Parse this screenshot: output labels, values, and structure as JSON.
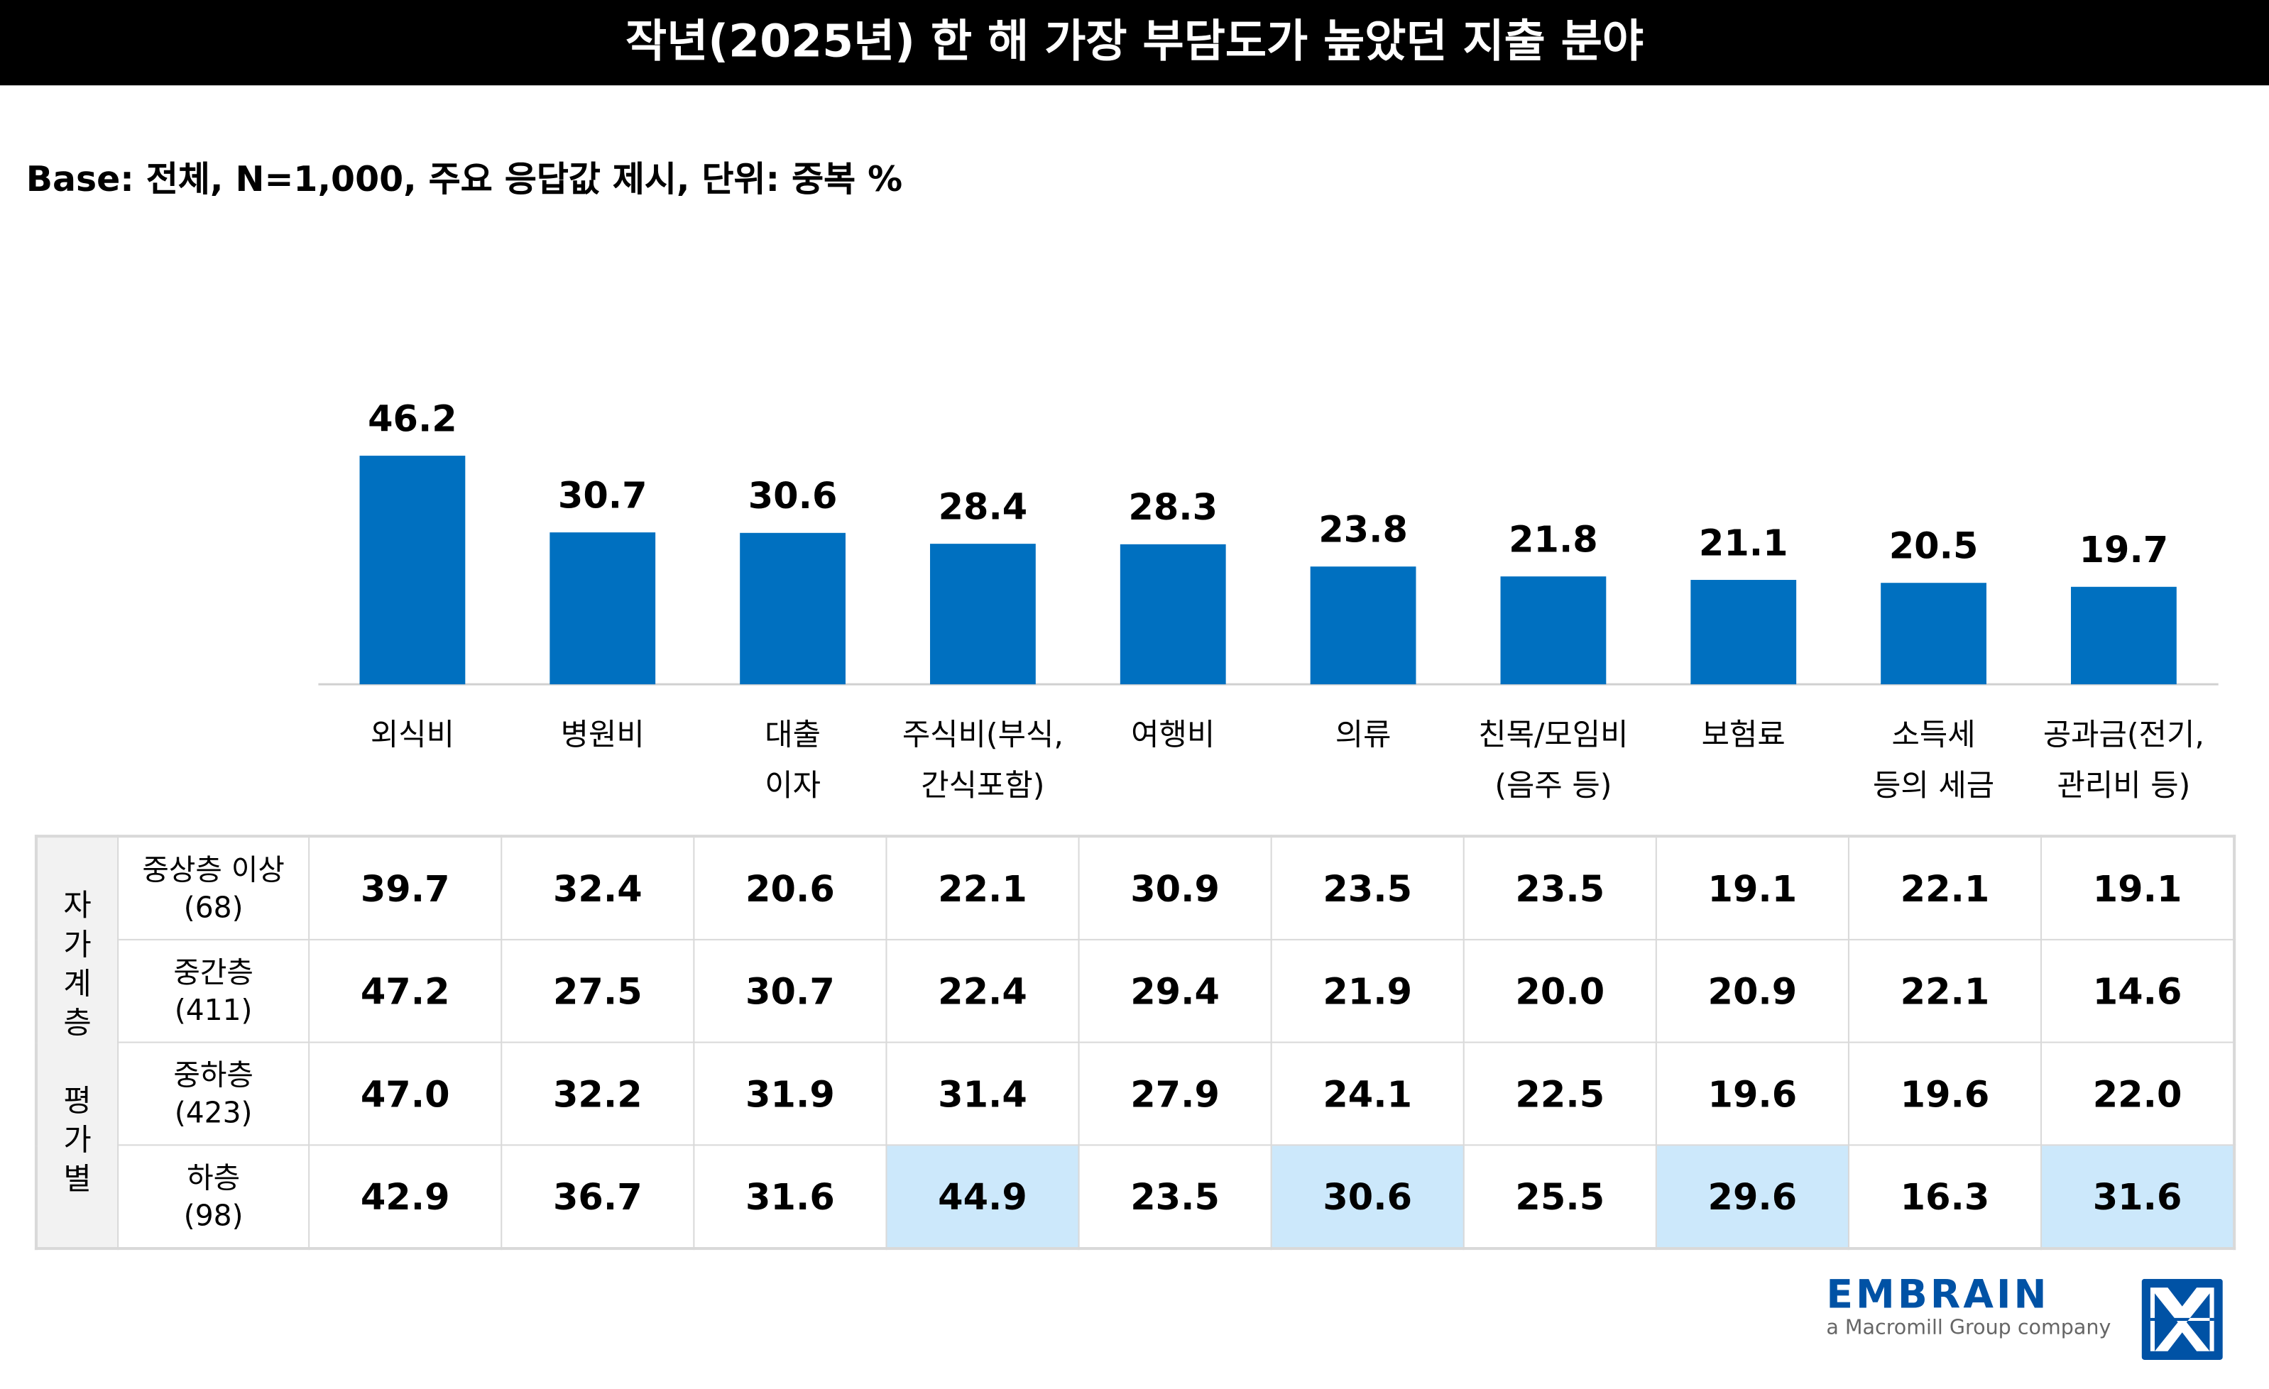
{
  "title": "작년(2025년) 한 해 가장 부담도가 높았던 지출 분야",
  "subtitle": "Base: 전체, N=1,000, 주요 응답값 제시, 단위: 중복 %",
  "colors": {
    "bar": "#0070c0",
    "highlight": "#cce8fb",
    "brand": "#0052a5"
  },
  "chart_data": {
    "type": "bar",
    "categories": [
      [
        "외식비"
      ],
      [
        "병원비"
      ],
      [
        "대출",
        "이자"
      ],
      [
        "주식비(부식,",
        "간식포함)"
      ],
      [
        "여행비"
      ],
      [
        "의류"
      ],
      [
        "친목/모임비",
        "(음주 등)"
      ],
      [
        "보험료"
      ],
      [
        "소득세",
        "등의 세금"
      ],
      [
        "공과금(전기,",
        "관리비 등)"
      ]
    ],
    "values": [
      46.2,
      30.7,
      30.6,
      28.4,
      28.3,
      23.8,
      21.8,
      21.1,
      20.5,
      19.7
    ],
    "ylim": [
      0,
      50
    ],
    "grid": false
  },
  "table": {
    "group_label": [
      "자",
      "가",
      "계",
      "층",
      "",
      "평",
      "가",
      "별"
    ],
    "rows": [
      {
        "label": "중상층 이상",
        "n": "(68)",
        "values": [
          "39.7",
          "32.4",
          "20.6",
          "22.1",
          "30.9",
          "23.5",
          "23.5",
          "19.1",
          "22.1",
          "19.1"
        ],
        "highlight": []
      },
      {
        "label": "중간층",
        "n": "(411)",
        "values": [
          "47.2",
          "27.5",
          "30.7",
          "22.4",
          "29.4",
          "21.9",
          "20.0",
          "20.9",
          "22.1",
          "14.6"
        ],
        "highlight": []
      },
      {
        "label": "중하층",
        "n": "(423)",
        "values": [
          "47.0",
          "32.2",
          "31.9",
          "31.4",
          "27.9",
          "24.1",
          "22.5",
          "19.6",
          "19.6",
          "22.0"
        ],
        "highlight": []
      },
      {
        "label": "하층",
        "n": "(98)",
        "values": [
          "42.9",
          "36.7",
          "31.6",
          "44.9",
          "23.5",
          "30.6",
          "25.5",
          "29.6",
          "16.3",
          "31.6"
        ],
        "highlight": [
          3,
          5,
          7,
          9
        ]
      }
    ]
  },
  "logo": {
    "brand": "EMBRAIN",
    "tagline": "a Macromill Group company"
  }
}
